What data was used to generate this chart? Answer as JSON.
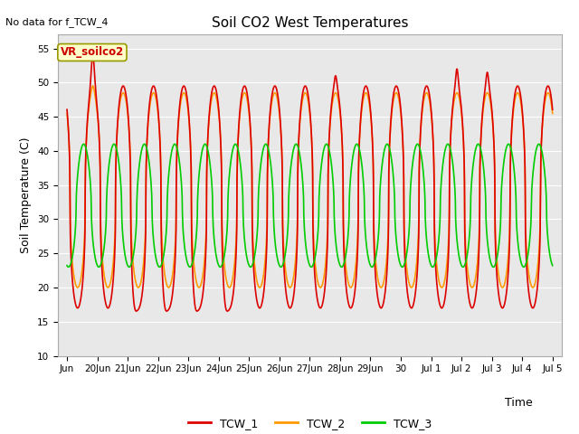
{
  "title": "Soil CO2 West Temperatures",
  "xlabel": "Time",
  "ylabel": "Soil Temperature (C)",
  "ylim": [
    10,
    57
  ],
  "yticks": [
    10,
    15,
    20,
    25,
    30,
    35,
    40,
    45,
    50,
    55
  ],
  "no_data_text": "No data for f_TCW_4",
  "annotation_text": "VR_soilco2",
  "annotation_color": "#cc0000",
  "annotation_bg": "#ffffcc",
  "annotation_border": "#999900",
  "bg_color": "#e8e8e8",
  "line_colors": {
    "TCW_1": "#dd0000",
    "TCW_2": "#ff9900",
    "TCW_3": "#00cc00"
  },
  "line_width": 1.2,
  "tick_labels": [
    "Jun",
    "20Jun",
    "21Jun",
    "22Jun",
    "23Jun",
    "24Jun",
    "25Jun",
    "26Jun",
    "27Jun",
    "28Jun",
    "29Jun",
    "30",
    "Jul 1",
    "Jul 2",
    "Jul 3",
    "Jul 4",
    "Jul 5"
  ]
}
